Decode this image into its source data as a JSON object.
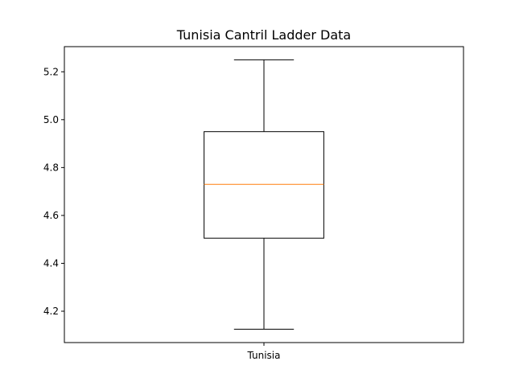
{
  "chart_data": {
    "type": "box",
    "title": "Tunisia Cantril Ladder Data",
    "xlabel": "",
    "ylabel": "",
    "categories": [
      "Tunisia"
    ],
    "boxes": [
      {
        "category": "Tunisia",
        "whisker_low": 4.125,
        "q1": 4.505,
        "median": 4.73,
        "q3": 4.95,
        "whisker_high": 5.25
      }
    ],
    "ylim": [
      4.069,
      5.305
    ],
    "yticks": [
      4.2,
      4.4,
      4.6,
      4.8,
      5.0,
      5.2
    ],
    "ytick_labels": [
      "4.2",
      "4.4",
      "4.6",
      "4.8",
      "5.0",
      "5.2"
    ],
    "grid": false,
    "colors": {
      "box": "#000000",
      "median": "#ff7f0e",
      "axes": "#000000",
      "background": "#ffffff"
    }
  }
}
